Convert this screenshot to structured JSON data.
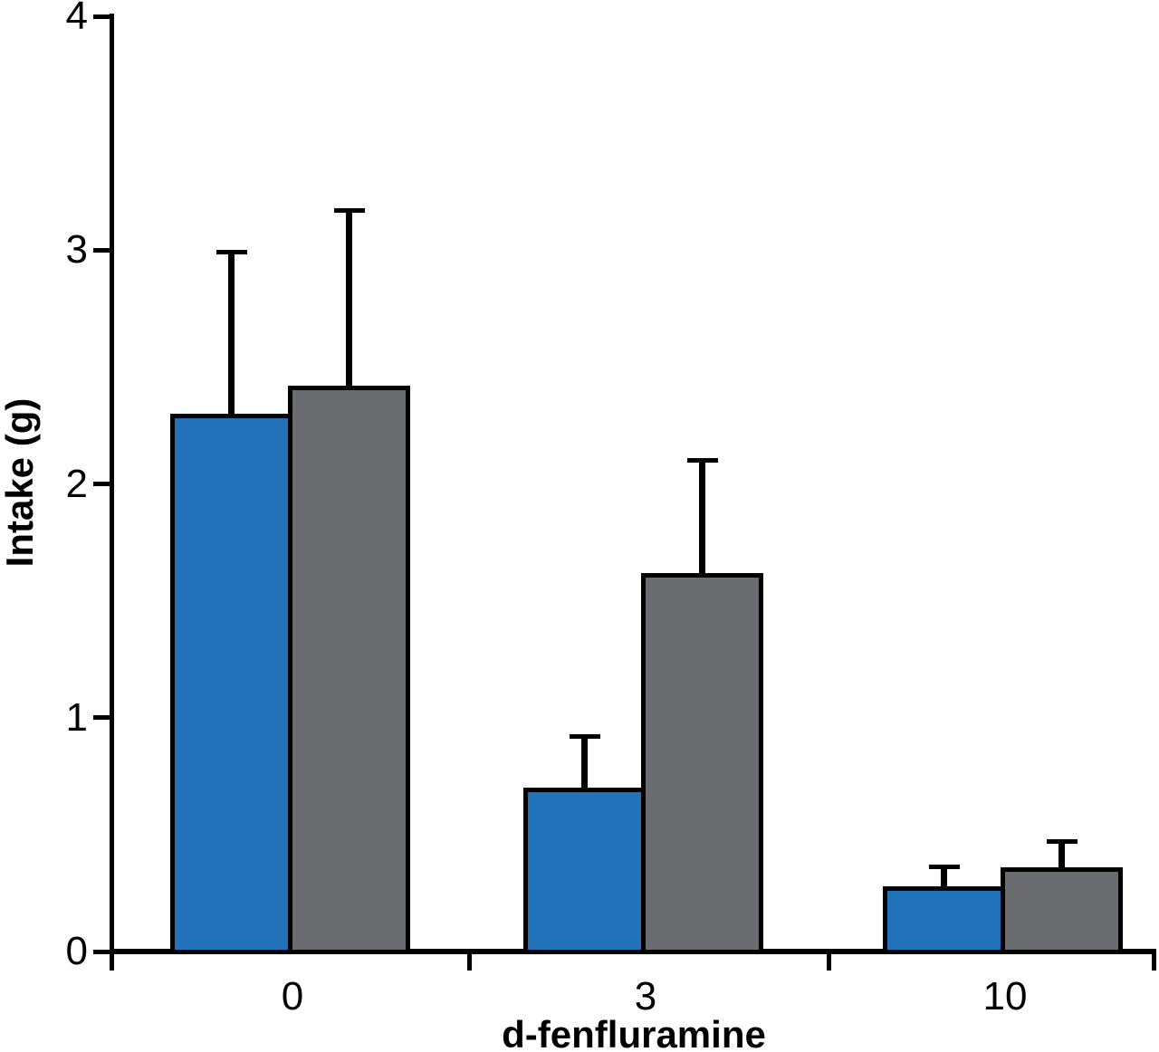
{
  "chart_data": {
    "type": "bar",
    "title": "",
    "xlabel": "d-fenfluramine",
    "ylabel": "Intake (g)",
    "categories": [
      "0",
      "3",
      "10"
    ],
    "y_ticks": [
      0,
      1,
      2,
      3,
      4
    ],
    "ylim": [
      0,
      4
    ],
    "grid": false,
    "legend": "none",
    "error_bars": "upper-only",
    "series": [
      {
        "name": "blue",
        "color": "#2272B9",
        "values": [
          2.3,
          0.7,
          0.28
        ],
        "errors_plus": [
          0.7,
          0.23,
          0.09
        ]
      },
      {
        "name": "gray",
        "color": "#6B6C6F",
        "values": [
          2.42,
          1.62,
          0.36
        ],
        "errors_plus": [
          0.76,
          0.49,
          0.12
        ]
      }
    ]
  }
}
